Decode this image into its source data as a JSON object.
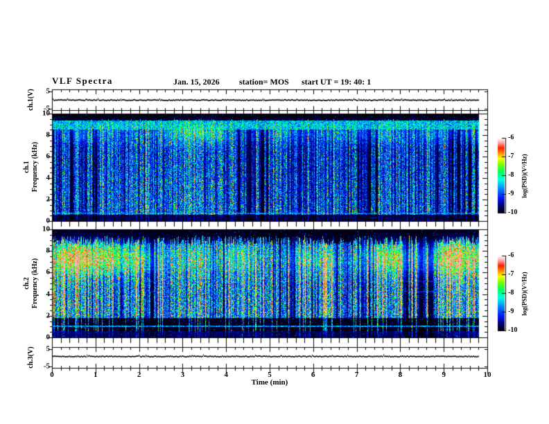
{
  "header": {
    "title": "VLF Spectra",
    "date": "Jan. 15, 2026",
    "station": "station= MOS",
    "start_ut": "start UT =  19: 40: 1"
  },
  "x_axis": {
    "label": "Time (min)",
    "min": 0,
    "max": 10,
    "major_ticks": [
      0,
      1,
      2,
      3,
      4,
      5,
      6,
      7,
      8,
      9,
      10
    ],
    "minor_step": 0.2,
    "data_end_min": 9.82
  },
  "panels": {
    "ch1_voltage": {
      "axis_title": "ch.1(V)",
      "ymin": -6,
      "ymax": 6,
      "tick_values": [
        5,
        -5
      ]
    },
    "ch1_spectrogram": {
      "axis_title_line1": "ch.1",
      "axis_title_line2": "Frequency (kHz)",
      "ymin": 0,
      "ymax": 10,
      "major_ticks": [
        10,
        8,
        6,
        4,
        2,
        0
      ],
      "minor_step": 0.5
    },
    "ch2_spectrogram": {
      "axis_title_line1": "ch.2",
      "axis_title_line2": "Frequency (kHz)",
      "ymin": 0,
      "ymax": 10,
      "major_ticks": [
        10,
        8,
        6,
        4,
        2,
        0
      ],
      "minor_step": 0.5
    },
    "ch3_voltage": {
      "axis_title": "ch.3(V)",
      "ymin": -6,
      "ymax": 6,
      "tick_values": [
        5,
        -5
      ]
    }
  },
  "colorbar": {
    "label": "log(PSD)(V²/Hz)",
    "tick_values": [
      -6,
      -7,
      -8,
      -9,
      -10
    ],
    "zmin": -10,
    "zmax": -6,
    "stops": [
      [
        0.0,
        "#000008"
      ],
      [
        0.08,
        "#00005a"
      ],
      [
        0.2,
        "#0014ff"
      ],
      [
        0.33,
        "#008cff"
      ],
      [
        0.44,
        "#00ffe6"
      ],
      [
        0.55,
        "#00ff5a"
      ],
      [
        0.65,
        "#78ff00"
      ],
      [
        0.73,
        "#ffff00"
      ],
      [
        0.8,
        "#ff8c00"
      ],
      [
        0.87,
        "#ff1e00"
      ],
      [
        0.93,
        "#ff9696"
      ],
      [
        1.0,
        "#ffffff"
      ]
    ]
  },
  "chart_data": [
    {
      "type": "line",
      "panel": "ch1_voltage",
      "ylabel": "ch.1(V)",
      "xlim": [
        0,
        10
      ],
      "ylim": [
        -5,
        5
      ],
      "x_end": 9.82,
      "series": [
        {
          "name": "ch.1 waveform",
          "values": "flat trace at ~0 V with minor noise, runs 0 to 9.82 min"
        }
      ]
    },
    {
      "type": "heatmap",
      "panel": "ch1_spectrogram",
      "ylabel": "ch.1 Frequency (kHz)",
      "xlim": [
        0,
        10
      ],
      "ylim": [
        0,
        10
      ],
      "x_end": 9.82,
      "zlabel": "log(PSD)(V²/Hz)",
      "zlim": [
        -10,
        -6
      ],
      "features": [
        "dense vertical impulsive streaks (sferics) spanning 0.5-9.5 kHz, typical PSD -9..-8 (blue/cyan) with green and sparse red cores",
        "continuous emission band at 8.6-9.4 kHz across the whole record (cyan/green)",
        "narrow horizontal line at ~0.7 kHz",
        "quiet background near -10 (black), dim speckle below 0.5 kHz"
      ]
    },
    {
      "type": "heatmap",
      "panel": "ch2_spectrogram",
      "ylabel": "ch.2 Frequency (kHz)",
      "xlim": [
        0,
        10
      ],
      "ylim": [
        0,
        10
      ],
      "x_end": 9.82,
      "zlabel": "log(PSD)(V²/Hz)",
      "zlim": [
        -10,
        -6
      ],
      "features": [
        "stronger broadband streaks 1.8-9 kHz with green/yellow cores and frequent red centers (-7..-6.5)",
        "diffuse emission cloud around 6-8.5 kHz",
        "quiet dark band 0.6-1.7 kHz crossed only by the strongest streaks",
        "narrow horizontal lines at ~1.0, 4.25, 5.2 and 6.3 kHz",
        "background near -10 (black), darker above ~9 kHz"
      ]
    },
    {
      "type": "line",
      "panel": "ch3_voltage",
      "ylabel": "ch.3(V)",
      "xlim": [
        0,
        10
      ],
      "ylim": [
        -5,
        5
      ],
      "x_end": 9.82,
      "series": [
        {
          "name": "ch.3 waveform",
          "values": "flat trace at ~0 V with small upward spikes, runs 0 to 9.82 min"
        }
      ]
    }
  ],
  "texture": {
    "ch1_spectrogram": {
      "seed": 1101,
      "gain": 0.95,
      "p_strong": 0.045,
      "p_med": 0.4,
      "p_weak": 0.3,
      "top_base": 9.3,
      "top_jit": 0.5,
      "slope": 0.28,
      "low_cut": 0.55,
      "band": [
        8.55,
        9.4,
        0.42
      ],
      "hlines": [
        [
          0.68,
          0.3
        ]
      ],
      "cloud_c": 8.2,
      "cloud_w": 1.0,
      "cloud_max": 0.3,
      "core": false
    },
    "ch2_spectrogram": {
      "seed": 2202,
      "gain": 1.18,
      "p_strong": 0.1,
      "p_med": 0.45,
      "p_weak": 0.25,
      "top_base": 9.0,
      "top_jit": 0.9,
      "slope": 0.15,
      "dark_low": [
        0.55,
        1.75
      ],
      "hlines": [
        [
          1.02,
          0.28
        ],
        [
          4.25,
          0.15
        ],
        [
          5.2,
          0.15
        ],
        [
          6.3,
          0.17
        ]
      ],
      "cloud_c": 7.3,
      "cloud_w": 1.5,
      "cloud_max": 0.5,
      "core": true
    },
    "voltage": {
      "seed_ch1": 77,
      "seed_ch3": 99,
      "jitter": 1.3
    }
  }
}
